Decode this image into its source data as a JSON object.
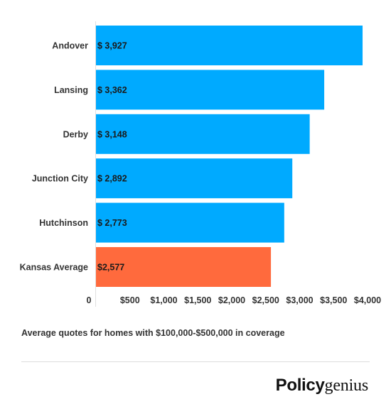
{
  "chart_data": {
    "type": "bar",
    "orientation": "horizontal",
    "categories": [
      "Andover",
      "Lansing",
      "Derby",
      "Junction City",
      "Hutchinson",
      "Kansas Average"
    ],
    "values": [
      3927,
      3362,
      3148,
      2892,
      2773,
      2577
    ],
    "value_labels": [
      "$ 3,927",
      "$ 3,362",
      "$ 3,148",
      "$ 2,892",
      "$ 2,773",
      "$2,577"
    ],
    "bar_colors": [
      "#00aaff",
      "#00aaff",
      "#00aaff",
      "#00aaff",
      "#00aaff",
      "#ff6a3d"
    ],
    "xlim": [
      0,
      4000
    ],
    "x_ticks": [
      0,
      500,
      1000,
      1500,
      2000,
      2500,
      3000,
      3500,
      4000
    ],
    "x_tick_labels": [
      "0",
      "$500",
      "$1,000",
      "$1,500",
      "$2,000",
      "$2,500",
      "$3,000",
      "$3,500",
      "$4,000"
    ],
    "title": "",
    "xlabel": "",
    "ylabel": "",
    "grid": false,
    "legend": "none"
  },
  "caption": "Average quotes for homes with $100,000-$500,000 in coverage",
  "brand": {
    "part1": "Policy",
    "part2": "genius"
  }
}
